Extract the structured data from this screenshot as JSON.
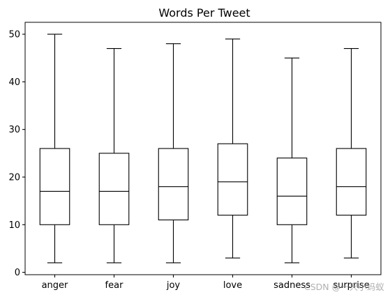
{
  "chart_data": {
    "type": "box",
    "title": "Words Per Tweet",
    "xlabel": "",
    "ylabel": "",
    "ylim": [
      -0.5,
      52.5
    ],
    "yticks": [
      0,
      10,
      20,
      30,
      40,
      50
    ],
    "grid": false,
    "categories": [
      "anger",
      "fear",
      "joy",
      "love",
      "sadness",
      "surprise"
    ],
    "boxes": [
      {
        "category": "anger",
        "min": 2,
        "q1": 10,
        "median": 17,
        "q3": 26,
        "max": 50
      },
      {
        "category": "fear",
        "min": 2,
        "q1": 10,
        "median": 17,
        "q3": 25,
        "max": 47
      },
      {
        "category": "joy",
        "min": 2,
        "q1": 11,
        "median": 18,
        "q3": 26,
        "max": 48
      },
      {
        "category": "love",
        "min": 3,
        "q1": 12,
        "median": 19,
        "q3": 27,
        "max": 49
      },
      {
        "category": "sadness",
        "min": 2,
        "q1": 10,
        "median": 16,
        "q3": 24,
        "max": 45
      },
      {
        "category": "surprise",
        "min": 3,
        "q1": 12,
        "median": 18,
        "q3": 26,
        "max": 47
      }
    ]
  },
  "watermark": "CSDN @一只小蚂蚁"
}
